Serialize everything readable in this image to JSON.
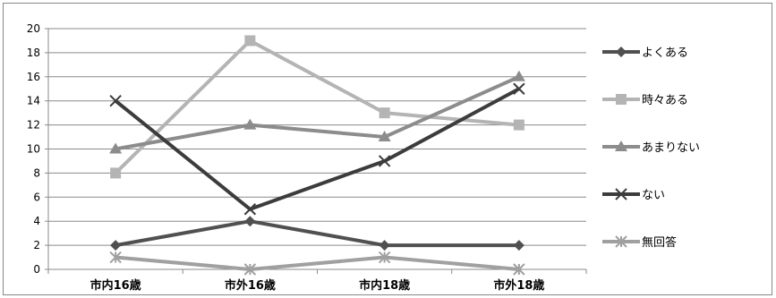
{
  "chart_data": {
    "type": "line",
    "categories": [
      "市内16歳",
      "市外16歳",
      "市内18歳",
      "市外18歳"
    ],
    "ylim": [
      0,
      20
    ],
    "yticks": [
      "0",
      "2",
      "4",
      "6",
      "8",
      "10",
      "12",
      "14",
      "16",
      "18",
      "20"
    ],
    "grid": true,
    "legend_position": "right",
    "series": [
      {
        "name": "よくある",
        "values": [
          2,
          4,
          2,
          2
        ],
        "color": "#505050",
        "marker": "diamond"
      },
      {
        "name": "時々ある",
        "values": [
          8,
          19,
          13,
          12
        ],
        "color": "#b4b4b4",
        "marker": "square"
      },
      {
        "name": "あまりない",
        "values": [
          10,
          12,
          11,
          16
        ],
        "color": "#8c8c8c",
        "marker": "triangle"
      },
      {
        "name": "ない",
        "values": [
          14,
          5,
          9,
          15
        ],
        "color": "#3c3c3c",
        "marker": "x"
      },
      {
        "name": "無回答",
        "values": [
          1,
          0,
          1,
          0
        ],
        "color": "#a0a0a0",
        "marker": "star"
      }
    ]
  }
}
